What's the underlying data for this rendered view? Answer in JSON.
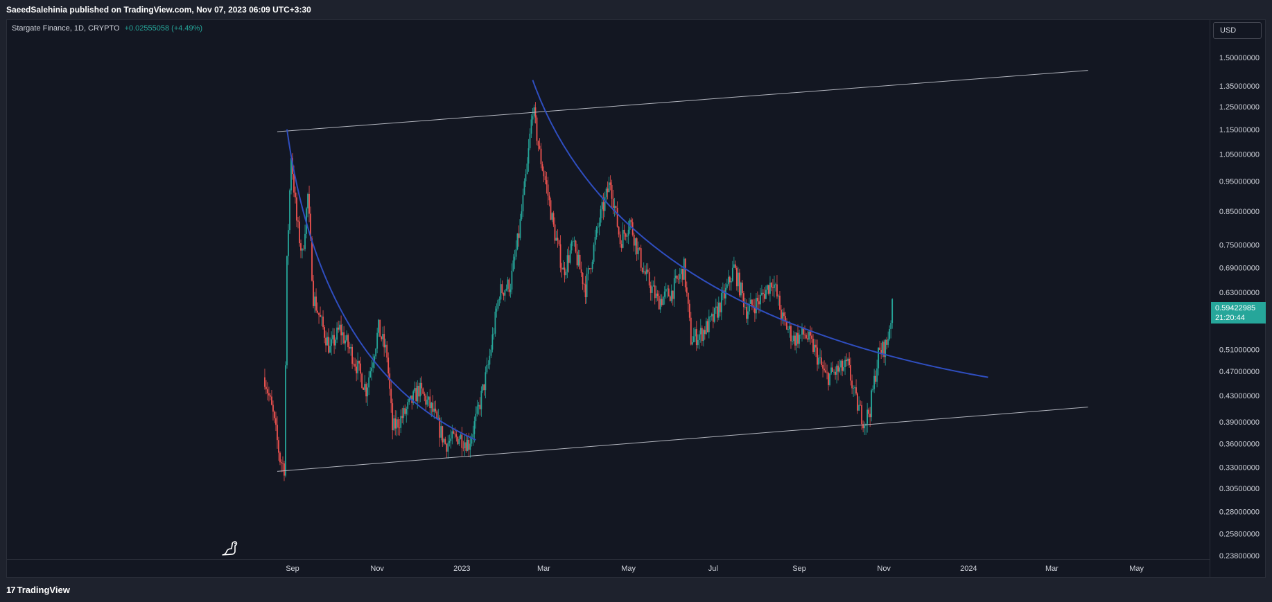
{
  "header": {
    "text": "SaeedSalehinia published on TradingView.com, Nov 07, 2023 06:09 UTC+3:30"
  },
  "legend": {
    "symbol": "Stargate Finance, 1D, CRYPTO",
    "change": "+0.02555058 (+4.49%)"
  },
  "currency_button": "USD",
  "last_price": {
    "price": "0.59422985",
    "countdown": "21:20:44"
  },
  "footer": {
    "logo_mark": "17",
    "logo_text": "TradingView"
  },
  "colors": {
    "up": "#26a69a",
    "down": "#ef5350",
    "curve": "#2f4ec0",
    "trendline": "#b2b5be",
    "background": "#131722"
  },
  "icons": {
    "mascot": "dinosaur-icon"
  },
  "chart_data": {
    "type": "candlestick",
    "scale": "log",
    "y_ticks": [
      "1.50000000",
      "1.35000000",
      "1.25000000",
      "1.15000000",
      "1.05000000",
      "0.95000000",
      "0.85000000",
      "0.75000000",
      "0.69000000",
      "0.63000000",
      "0.51000000",
      "0.47000000",
      "0.43000000",
      "0.39000000",
      "0.36000000",
      "0.33000000",
      "0.30500000",
      "0.28000000",
      "0.25800000",
      "0.23800000"
    ],
    "x_ticks": [
      "Sep",
      "Nov",
      "2023",
      "Mar",
      "May",
      "Jul",
      "Sep",
      "Nov",
      "2024",
      "Mar",
      "May"
    ],
    "x_tick_dates": [
      "2022-09-01",
      "2022-11-01",
      "2023-01-01",
      "2023-03-01",
      "2023-05-01",
      "2023-07-01",
      "2023-09-01",
      "2023-11-01",
      "2024-01-01",
      "2024-03-01",
      "2024-05-01"
    ],
    "close_path": [
      [
        "2022-08-12",
        0.46
      ],
      [
        "2022-08-18",
        0.4
      ],
      [
        "2022-08-23",
        0.34
      ],
      [
        "2022-08-26",
        0.33
      ],
      [
        "2022-08-28",
        0.7
      ],
      [
        "2022-08-31",
        1.05
      ],
      [
        "2022-09-04",
        0.82
      ],
      [
        "2022-09-08",
        0.72
      ],
      [
        "2022-09-12",
        0.9
      ],
      [
        "2022-09-16",
        0.62
      ],
      [
        "2022-09-22",
        0.56
      ],
      [
        "2022-09-28",
        0.51
      ],
      [
        "2022-10-05",
        0.55
      ],
      [
        "2022-10-14",
        0.5
      ],
      [
        "2022-10-24",
        0.44
      ],
      [
        "2022-11-02",
        0.55
      ],
      [
        "2022-11-08",
        0.5
      ],
      [
        "2022-11-12",
        0.38
      ],
      [
        "2022-11-20",
        0.4
      ],
      [
        "2022-12-01",
        0.44
      ],
      [
        "2022-12-10",
        0.41
      ],
      [
        "2022-12-20",
        0.36
      ],
      [
        "2022-12-30",
        0.37
      ],
      [
        "2023-01-06",
        0.36
      ],
      [
        "2023-01-12",
        0.4
      ],
      [
        "2023-01-20",
        0.48
      ],
      [
        "2023-01-28",
        0.63
      ],
      [
        "2023-02-05",
        0.65
      ],
      [
        "2023-02-11",
        0.78
      ],
      [
        "2023-02-17",
        1.0
      ],
      [
        "2023-02-21",
        1.25
      ],
      [
        "2023-02-26",
        1.05
      ],
      [
        "2023-03-03",
        0.93
      ],
      [
        "2023-03-08",
        0.8
      ],
      [
        "2023-03-15",
        0.68
      ],
      [
        "2023-03-22",
        0.75
      ],
      [
        "2023-03-31",
        0.64
      ],
      [
        "2023-04-10",
        0.82
      ],
      [
        "2023-04-18",
        0.95
      ],
      [
        "2023-04-25",
        0.76
      ],
      [
        "2023-05-02",
        0.82
      ],
      [
        "2023-05-12",
        0.68
      ],
      [
        "2023-05-22",
        0.61
      ],
      [
        "2023-06-01",
        0.63
      ],
      [
        "2023-06-10",
        0.69
      ],
      [
        "2023-06-15",
        0.53
      ],
      [
        "2023-06-22",
        0.54
      ],
      [
        "2023-07-01",
        0.57
      ],
      [
        "2023-07-10",
        0.63
      ],
      [
        "2023-07-16",
        0.69
      ],
      [
        "2023-07-25",
        0.59
      ],
      [
        "2023-08-03",
        0.61
      ],
      [
        "2023-08-13",
        0.66
      ],
      [
        "2023-08-20",
        0.57
      ],
      [
        "2023-08-28",
        0.53
      ],
      [
        "2023-09-05",
        0.54
      ],
      [
        "2023-09-12",
        0.51
      ],
      [
        "2023-09-20",
        0.46
      ],
      [
        "2023-09-28",
        0.47
      ],
      [
        "2023-10-06",
        0.48
      ],
      [
        "2023-10-12",
        0.42
      ],
      [
        "2023-10-18",
        0.39
      ],
      [
        "2023-10-22",
        0.41
      ],
      [
        "2023-10-28",
        0.5
      ],
      [
        "2023-11-03",
        0.52
      ],
      [
        "2023-11-07",
        0.594
      ]
    ],
    "trendlines": [
      {
        "name": "upper-channel",
        "from": [
          "2022-08-21",
          1.14
        ],
        "to": [
          "2024-03-27",
          1.43
        ]
      },
      {
        "name": "lower-channel",
        "from": [
          "2022-08-21",
          0.325
        ],
        "to": [
          "2024-03-27",
          0.412
        ]
      }
    ],
    "curves": [
      {
        "name": "decay-curve-1",
        "from": [
          "2022-08-28",
          1.15
        ],
        "to": [
          "2023-01-11",
          0.365
        ]
      },
      {
        "name": "decay-curve-2",
        "from": [
          "2023-02-21",
          1.38
        ],
        "to": [
          "2024-01-15",
          0.46
        ]
      }
    ]
  }
}
